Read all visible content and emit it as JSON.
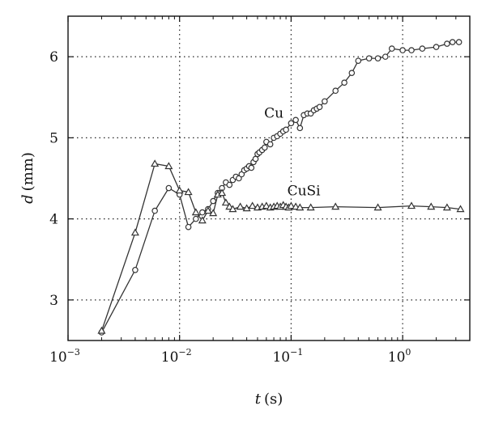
{
  "chart_data": {
    "type": "line",
    "x_scale": "log",
    "xlim": [
      0.001,
      4
    ],
    "ylim": [
      2.5,
      6.5
    ],
    "grid": true,
    "xlabel_var": "t",
    "xlabel_unit": "(s)",
    "ylabel_var": "d",
    "ylabel_unit": "(mm)",
    "x_ticks": [
      {
        "value": 0.001,
        "base": "10",
        "exp": "−3"
      },
      {
        "value": 0.01,
        "base": "10",
        "exp": "−2"
      },
      {
        "value": 0.1,
        "base": "10",
        "exp": "−1"
      },
      {
        "value": 1,
        "base": "10",
        "exp": "0"
      }
    ],
    "y_ticks": [
      {
        "value": 3,
        "label": "3"
      },
      {
        "value": 4,
        "label": "4"
      },
      {
        "value": 5,
        "label": "5"
      },
      {
        "value": 6,
        "label": "6"
      }
    ],
    "series": [
      {
        "name": "Cu",
        "marker": "circle",
        "x": [
          0.002,
          0.004,
          0.006,
          0.008,
          0.01,
          0.012,
          0.014,
          0.016,
          0.018,
          0.02,
          0.022,
          0.024,
          0.026,
          0.028,
          0.03,
          0.032,
          0.034,
          0.036,
          0.038,
          0.04,
          0.042,
          0.044,
          0.046,
          0.048,
          0.05,
          0.052,
          0.055,
          0.058,
          0.06,
          0.065,
          0.07,
          0.075,
          0.08,
          0.085,
          0.09,
          0.1,
          0.11,
          0.12,
          0.13,
          0.14,
          0.15,
          0.16,
          0.17,
          0.18,
          0.2,
          0.25,
          0.3,
          0.35,
          0.4,
          0.5,
          0.6,
          0.7,
          0.8,
          1.0,
          1.2,
          1.5,
          2.0,
          2.5,
          2.8,
          3.2
        ],
        "y": [
          2.6,
          3.37,
          4.1,
          4.38,
          4.3,
          3.9,
          4.0,
          4.08,
          4.12,
          4.22,
          4.32,
          4.38,
          4.45,
          4.42,
          4.48,
          4.52,
          4.5,
          4.55,
          4.6,
          4.62,
          4.65,
          4.63,
          4.7,
          4.74,
          4.8,
          4.82,
          4.85,
          4.88,
          4.95,
          4.92,
          5.0,
          5.02,
          5.05,
          5.08,
          5.1,
          5.18,
          5.22,
          5.12,
          5.28,
          5.3,
          5.3,
          5.34,
          5.36,
          5.38,
          5.45,
          5.58,
          5.68,
          5.8,
          5.95,
          5.98,
          5.98,
          6.0,
          6.1,
          6.08,
          6.08,
          6.1,
          6.12,
          6.16,
          6.18,
          6.18
        ]
      },
      {
        "name": "CuSi",
        "marker": "triangle",
        "x": [
          0.002,
          0.004,
          0.006,
          0.008,
          0.01,
          0.012,
          0.014,
          0.016,
          0.018,
          0.02,
          0.022,
          0.024,
          0.026,
          0.028,
          0.03,
          0.035,
          0.04,
          0.045,
          0.05,
          0.055,
          0.06,
          0.065,
          0.07,
          0.075,
          0.08,
          0.085,
          0.09,
          0.095,
          0.1,
          0.11,
          0.12,
          0.15,
          0.25,
          0.6,
          1.2,
          1.8,
          2.5,
          3.3
        ],
        "y": [
          2.62,
          3.83,
          4.68,
          4.65,
          4.35,
          4.33,
          4.08,
          3.98,
          4.1,
          4.07,
          4.3,
          4.32,
          4.2,
          4.15,
          4.12,
          4.15,
          4.13,
          4.16,
          4.14,
          4.15,
          4.16,
          4.14,
          4.15,
          4.16,
          4.15,
          4.17,
          4.15,
          4.14,
          4.16,
          4.15,
          4.14,
          4.14,
          4.15,
          4.14,
          4.16,
          4.15,
          4.14,
          4.12
        ]
      }
    ],
    "annotations": [
      {
        "text": "Cu",
        "x": 0.07,
        "y": 5.25
      },
      {
        "text": "CuSi",
        "x": 0.13,
        "y": 4.29
      }
    ]
  }
}
